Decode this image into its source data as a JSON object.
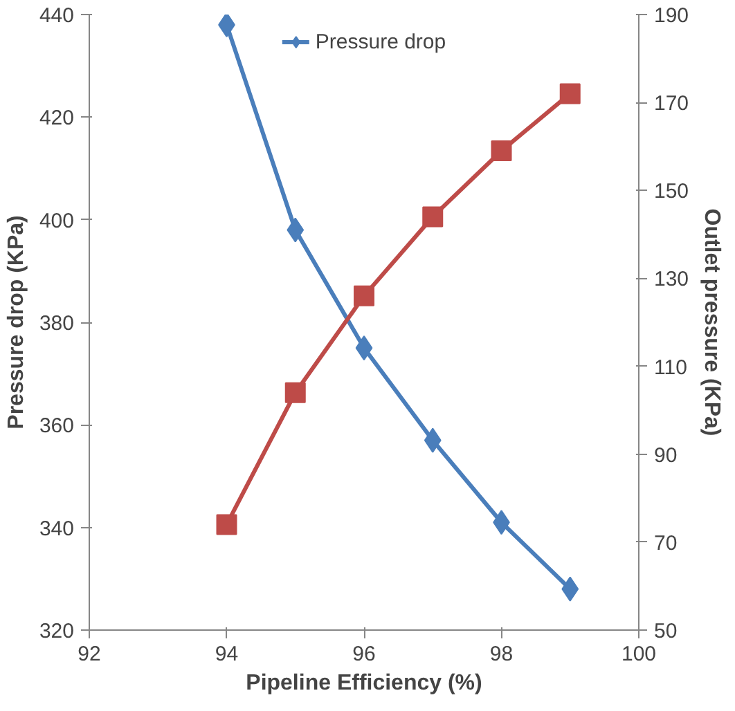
{
  "chart_data": {
    "type": "line",
    "xlabel": "Pipeline Efficiency (%)",
    "ylabel": "Pressure drop (KPa)",
    "y2label": "Outlet pressure (KPa)",
    "x": [
      94,
      95,
      96,
      97,
      98,
      99
    ],
    "series": [
      {
        "name": "Pressure drop",
        "color": "#4a7ebb",
        "marker": "diamond",
        "values": [
          438,
          398,
          375,
          357,
          341,
          328
        ]
      },
      {
        "color": "#be4b48",
        "marker": "square",
        "axis": "y2",
        "values": [
          74,
          104,
          126,
          144,
          159,
          172
        ]
      }
    ],
    "xlim": [
      92,
      100
    ],
    "xticks": [
      92,
      94,
      96,
      98,
      100
    ],
    "ylim": [
      320,
      440
    ],
    "yticks": [
      320,
      340,
      360,
      380,
      400,
      420,
      440
    ],
    "y2lim": [
      50,
      190
    ],
    "y2ticks": [
      50,
      70,
      90,
      110,
      130,
      150,
      170,
      190
    ],
    "grid": false,
    "legend": "top"
  }
}
